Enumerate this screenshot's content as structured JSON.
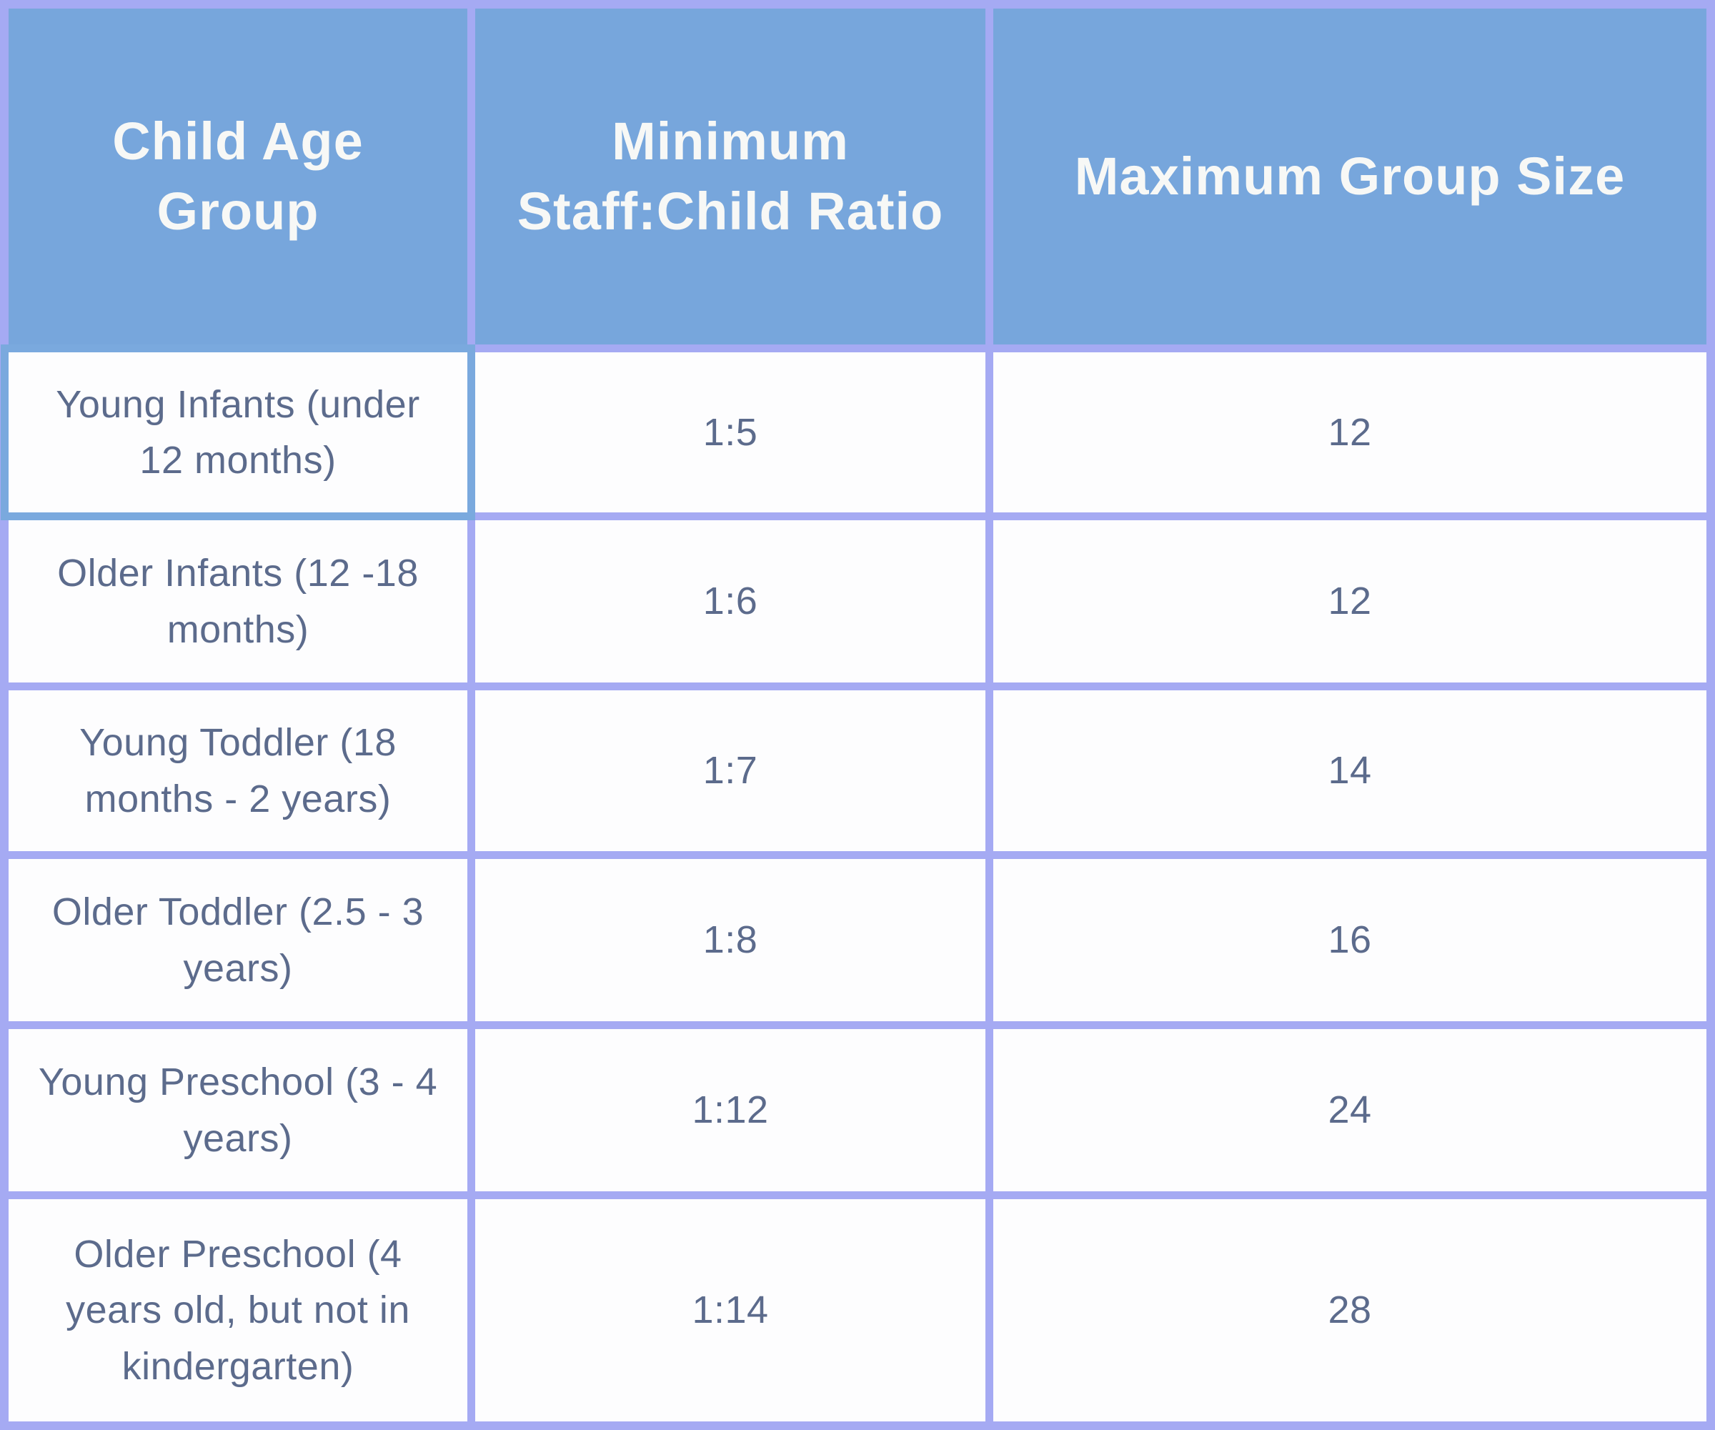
{
  "chart_data": {
    "type": "table",
    "columns": [
      "Child Age Group",
      "Minimum Staff:Child Ratio",
      "Maximum Group Size"
    ],
    "rows": [
      [
        "Young Infants (under 12 months)",
        "1:5",
        "12"
      ],
      [
        "Older Infants (12 -18 months)",
        "1:6",
        "12"
      ],
      [
        "Young Toddler (18 months - 2 years)",
        "1:7",
        "14"
      ],
      [
        "Older Toddler (2.5 - 3 years)",
        "1:8",
        "16"
      ],
      [
        "Young Preschool (3 - 4 years)",
        "1:12",
        "24"
      ],
      [
        "Older Preschool (4 years old, but not in kindergarten)",
        "1:14",
        "28"
      ]
    ],
    "legend": "none",
    "grid": "on"
  },
  "colors": {
    "frame_purple": "#98a5f9",
    "grid_purple": "#a5aaf3",
    "header_blue": "#77a6dc",
    "accent_blue_border": "#7aa9de",
    "cell_white": "#fdfdfe",
    "header_text": "#f7f8f6",
    "body_text": "#5c6b8c"
  }
}
